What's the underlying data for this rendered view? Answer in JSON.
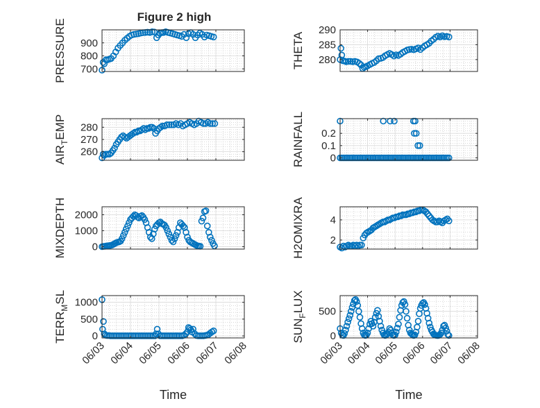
{
  "figure": {
    "title": "Figure 2 high",
    "marker_color": "#0072BD",
    "x_tick_labels": [
      "06/03",
      "06/04",
      "06/05",
      "06/06",
      "06/07",
      "06/08"
    ],
    "x_label": "Time"
  },
  "chart_data": [
    {
      "type": "scatter",
      "ylabel": "PRESSURE",
      "xlim": [
        3.0,
        8.0
      ],
      "ylim": [
        680,
        1000
      ],
      "yticks": [
        700,
        800,
        900
      ],
      "x_tick_labels_shown": false,
      "xlabel": "",
      "grid": true,
      "x": [
        3.0,
        3.04,
        3.08,
        3.14,
        3.2,
        3.26,
        3.32,
        3.4,
        3.48,
        3.56,
        3.64,
        3.72,
        3.8,
        3.88,
        3.96,
        4.04,
        4.12,
        4.2,
        4.28,
        4.36,
        4.44,
        4.52,
        4.6,
        4.68,
        4.76,
        4.84,
        4.92,
        4.98,
        5.04,
        5.1,
        5.16,
        5.24,
        5.32,
        5.4,
        5.48,
        5.56,
        5.64,
        5.72,
        5.8,
        5.88,
        5.96,
        6.04,
        6.12,
        6.2,
        6.28,
        6.36,
        6.44,
        6.52,
        6.6,
        6.68,
        6.76,
        6.84,
        6.92
      ],
      "y": [
        690,
        750,
        740,
        770,
        770,
        775,
        780,
        800,
        830,
        860,
        880,
        900,
        920,
        935,
        950,
        960,
        965,
        968,
        970,
        975,
        978,
        980,
        982,
        980,
        985,
        983,
        940,
        960,
        975,
        978,
        980,
        985,
        980,
        975,
        970,
        965,
        960,
        955,
        950,
        965,
        940,
        970,
        978,
        965,
        940,
        960,
        975,
        965,
        945,
        960,
        955,
        950,
        945
      ]
    },
    {
      "type": "scatter",
      "ylabel": "THETA",
      "xlim": [
        3.0,
        8.0
      ],
      "ylim": [
        276,
        290
      ],
      "yticks": [
        280,
        285,
        290
      ],
      "x_tick_labels_shown": false,
      "xlabel": "",
      "grid": true,
      "x": [
        3.0,
        3.03,
        3.06,
        3.1,
        3.16,
        3.22,
        3.3,
        3.38,
        3.46,
        3.54,
        3.62,
        3.7,
        3.76,
        3.82,
        3.88,
        3.94,
        4.0,
        4.08,
        4.16,
        4.24,
        4.32,
        4.4,
        4.48,
        4.56,
        4.64,
        4.72,
        4.8,
        4.88,
        4.96,
        5.04,
        5.12,
        5.2,
        5.28,
        5.36,
        5.44,
        5.52,
        5.6,
        5.68,
        5.76,
        5.84,
        5.92,
        6.0,
        6.08,
        6.16,
        6.24,
        6.32,
        6.4,
        6.48,
        6.56,
        6.64,
        6.72,
        6.8,
        6.88,
        6.96
      ],
      "y": [
        280.0,
        283.8,
        281.5,
        279.6,
        279.5,
        279.3,
        279.4,
        279.4,
        279.3,
        279.4,
        279.2,
        278.7,
        278.2,
        277.0,
        277.4,
        277.6,
        277.9,
        278.3,
        278.7,
        279.0,
        279.6,
        280.3,
        280.4,
        280.7,
        281.3,
        281.7,
        282.1,
        281.7,
        281.2,
        281.6,
        281.4,
        281.8,
        282.4,
        282.8,
        283.2,
        283.4,
        283.5,
        283.3,
        283.6,
        283.9,
        283.4,
        284.0,
        284.6,
        285.0,
        285.5,
        286.3,
        286.8,
        287.5,
        287.9,
        287.6,
        288.0,
        287.7,
        287.8,
        287.6
      ]
    },
    {
      "type": "scatter",
      "ylabel": "AIR_TEMP",
      "xlim": [
        3.0,
        8.0
      ],
      "ylim": [
        253,
        287
      ],
      "yticks": [
        260,
        270,
        280
      ],
      "x_tick_labels_shown": false,
      "xlabel": "",
      "grid": true,
      "x": [
        3.0,
        3.04,
        3.08,
        3.14,
        3.2,
        3.26,
        3.32,
        3.38,
        3.44,
        3.5,
        3.56,
        3.62,
        3.68,
        3.74,
        3.8,
        3.86,
        3.92,
        3.98,
        4.04,
        4.1,
        4.16,
        4.22,
        4.28,
        4.34,
        4.4,
        4.46,
        4.52,
        4.58,
        4.64,
        4.7,
        4.76,
        4.82,
        4.88,
        4.94,
        5.0,
        5.06,
        5.12,
        5.2,
        5.28,
        5.36,
        5.44,
        5.52,
        5.6,
        5.68,
        5.76,
        5.84,
        5.92,
        6.0,
        6.08,
        6.16,
        6.24,
        6.32,
        6.4,
        6.48,
        6.56,
        6.64,
        6.72,
        6.8,
        6.88,
        6.96
      ],
      "y": [
        255,
        258,
        257,
        258,
        258,
        258,
        259,
        261,
        263,
        266,
        268,
        270,
        272,
        273,
        272,
        271,
        272,
        273,
        274,
        275,
        276,
        276,
        277,
        277,
        278,
        279,
        278,
        279,
        279,
        280,
        280,
        279,
        275,
        277,
        279,
        280,
        281,
        281,
        282,
        282,
        282,
        282,
        283,
        282,
        283,
        281,
        282,
        283,
        284,
        283,
        282,
        283,
        285,
        284,
        283,
        283,
        284,
        283,
        283,
        283
      ]
    },
    {
      "type": "scatter",
      "ylabel": "RAINFALL",
      "xlim": [
        3.0,
        8.0
      ],
      "ylim": [
        -0.02,
        0.32
      ],
      "yticks": [
        0,
        0.1,
        0.2
      ],
      "x_tick_labels_shown": false,
      "xlabel": "",
      "grid": true,
      "x": [
        3.0,
        3.0,
        3.06,
        3.12,
        3.18,
        3.24,
        3.3,
        3.36,
        3.42,
        3.48,
        3.54,
        3.6,
        3.66,
        3.72,
        3.78,
        3.84,
        3.9,
        3.96,
        4.02,
        4.08,
        4.14,
        4.2,
        4.26,
        4.32,
        4.38,
        4.44,
        4.5,
        4.56,
        4.62,
        4.68,
        4.74,
        4.8,
        4.86,
        4.92,
        4.98,
        5.04,
        5.1,
        5.16,
        5.22,
        5.28,
        5.34,
        5.4,
        5.46,
        5.52,
        5.58,
        5.64,
        5.7,
        5.76,
        5.82,
        5.88,
        5.94,
        6.0,
        6.06,
        6.12,
        6.18,
        6.24,
        6.3,
        6.36,
        6.42,
        6.48,
        6.54,
        6.6,
        6.66,
        6.72,
        6.78,
        6.84,
        6.9,
        6.96,
        4.57,
        4.82,
        4.97,
        5.67,
        5.73,
        5.7,
        5.77,
        5.83,
        5.9
      ],
      "y": [
        0.3,
        0,
        0,
        0,
        0,
        0,
        0,
        0,
        0,
        0,
        0,
        0,
        0,
        0,
        0,
        0,
        0,
        0,
        0,
        0,
        0,
        0,
        0,
        0,
        0,
        0,
        0,
        0,
        0,
        0,
        0,
        0,
        0,
        0,
        0,
        0,
        0,
        0,
        0,
        0,
        0,
        0,
        0,
        0,
        0,
        0,
        0,
        0,
        0,
        0,
        0,
        0,
        0,
        0,
        0,
        0,
        0,
        0,
        0,
        0,
        0,
        0,
        0,
        0,
        0,
        0,
        0,
        0,
        0.3,
        0.3,
        0.3,
        0.3,
        0.3,
        0.2,
        0.2,
        0.1,
        0.1
      ]
    },
    {
      "type": "scatter",
      "ylabel": "MIXDEPTH",
      "xlim": [
        3.0,
        8.0
      ],
      "ylim": [
        -150,
        2500
      ],
      "yticks": [
        0,
        1000,
        2000
      ],
      "x_tick_labels_shown": false,
      "xlabel": "",
      "grid": true,
      "x": [
        3.0,
        3.05,
        3.1,
        3.15,
        3.2,
        3.25,
        3.3,
        3.35,
        3.4,
        3.45,
        3.5,
        3.55,
        3.6,
        3.65,
        3.7,
        3.75,
        3.8,
        3.85,
        3.9,
        3.95,
        4.0,
        4.05,
        4.1,
        4.15,
        4.2,
        4.25,
        4.3,
        4.35,
        4.4,
        4.45,
        4.5,
        4.55,
        4.6,
        4.65,
        4.7,
        4.75,
        4.8,
        4.85,
        4.9,
        4.95,
        5.0,
        5.05,
        5.1,
        5.15,
        5.2,
        5.25,
        5.3,
        5.35,
        5.4,
        5.45,
        5.5,
        5.55,
        5.6,
        5.65,
        5.7,
        5.75,
        5.8,
        5.85,
        5.9,
        5.95,
        6.0,
        6.05,
        6.1,
        6.15,
        6.2,
        6.25,
        6.3,
        6.35,
        6.4,
        6.45,
        6.5,
        6.55,
        6.6,
        6.65,
        6.7,
        6.75,
        6.8,
        6.85,
        6.9,
        6.95
      ],
      "y": [
        0,
        20,
        30,
        50,
        60,
        70,
        80,
        100,
        150,
        200,
        250,
        280,
        300,
        350,
        500,
        700,
        900,
        1100,
        1300,
        1500,
        1700,
        1800,
        1900,
        2000,
        1950,
        1850,
        1800,
        1900,
        1950,
        1850,
        1700,
        1500,
        1200,
        900,
        600,
        500,
        800,
        1100,
        1300,
        1400,
        1500,
        1550,
        1450,
        1400,
        1350,
        1200,
        1000,
        800,
        600,
        400,
        300,
        500,
        700,
        900,
        1200,
        1500,
        1400,
        1300,
        1200,
        900,
        600,
        400,
        300,
        250,
        200,
        150,
        100,
        50,
        40,
        30,
        1600,
        1800,
        2200,
        2250,
        1300,
        900,
        600,
        400,
        200,
        50
      ]
    },
    {
      "type": "scatter",
      "ylabel": "H2OMIXRA",
      "xlim": [
        3.0,
        8.0
      ],
      "ylim": [
        1.1,
        5.3
      ],
      "yticks": [
        2,
        4
      ],
      "x_tick_labels_shown": false,
      "xlabel": "",
      "grid": true,
      "x": [
        3.0,
        3.06,
        3.12,
        3.18,
        3.24,
        3.3,
        3.36,
        3.42,
        3.48,
        3.54,
        3.6,
        3.66,
        3.72,
        3.78,
        3.84,
        3.9,
        3.96,
        4.02,
        4.08,
        4.14,
        4.2,
        4.26,
        4.32,
        4.38,
        4.44,
        4.5,
        4.56,
        4.62,
        4.68,
        4.74,
        4.8,
        4.86,
        4.92,
        4.98,
        5.04,
        5.1,
        5.16,
        5.22,
        5.28,
        5.34,
        5.4,
        5.46,
        5.52,
        5.58,
        5.64,
        5.7,
        5.76,
        5.82,
        5.88,
        5.94,
        6.0,
        6.06,
        6.12,
        6.18,
        6.24,
        6.3,
        6.36,
        6.42,
        6.48,
        6.54,
        6.6,
        6.66,
        6.72,
        6.78,
        6.84,
        6.9,
        6.96
      ],
      "y": [
        1.3,
        1.2,
        1.4,
        1.3,
        1.4,
        1.5,
        1.4,
        1.4,
        1.5,
        1.4,
        1.5,
        1.4,
        1.5,
        1.5,
        2.2,
        2.5,
        2.7,
        2.8,
        2.9,
        3.0,
        3.2,
        3.3,
        3.4,
        3.5,
        3.6,
        3.7,
        3.8,
        3.8,
        3.9,
        4.0,
        4.0,
        4.1,
        4.2,
        4.2,
        4.3,
        4.3,
        4.4,
        4.4,
        4.5,
        4.5,
        4.5,
        4.6,
        4.6,
        4.7,
        4.7,
        4.8,
        4.8,
        4.9,
        4.9,
        5.0,
        5.0,
        4.9,
        4.8,
        4.6,
        4.4,
        4.2,
        4.0,
        3.9,
        3.8,
        3.8,
        3.9,
        3.8,
        3.7,
        3.9,
        4.0,
        4.1,
        3.9
      ]
    },
    {
      "type": "scatter",
      "ylabel": "TERR_MSL",
      "xlim": [
        3.0,
        8.0
      ],
      "ylim": [
        -60,
        1200
      ],
      "yticks": [
        0,
        500,
        1000
      ],
      "x_tick_labels_shown": true,
      "xlabel": "Time",
      "grid": true,
      "x": [
        3.0,
        3.02,
        3.05,
        3.08,
        3.12,
        3.18,
        3.24,
        3.3,
        3.36,
        3.42,
        3.48,
        3.54,
        3.6,
        3.66,
        3.72,
        3.78,
        3.84,
        3.9,
        3.96,
        4.02,
        4.08,
        4.14,
        4.2,
        4.26,
        4.32,
        4.38,
        4.44,
        4.5,
        4.56,
        4.62,
        4.68,
        4.74,
        4.8,
        4.86,
        4.9,
        4.94,
        4.98,
        5.04,
        5.1,
        5.16,
        5.22,
        5.28,
        5.34,
        5.4,
        5.46,
        5.52,
        5.58,
        5.64,
        5.7,
        5.76,
        5.82,
        5.88,
        5.94,
        6.0,
        6.04,
        6.08,
        6.12,
        6.16,
        6.2,
        6.26,
        6.32,
        6.38,
        6.44,
        6.5,
        6.56,
        6.62,
        6.68,
        6.74,
        6.8,
        6.86,
        6.92
      ],
      "y": [
        1080,
        200,
        430,
        60,
        20,
        10,
        10,
        5,
        5,
        5,
        5,
        5,
        5,
        5,
        5,
        5,
        5,
        5,
        5,
        5,
        5,
        5,
        5,
        5,
        5,
        5,
        5,
        5,
        5,
        5,
        5,
        5,
        5,
        5,
        60,
        200,
        60,
        5,
        5,
        5,
        5,
        5,
        5,
        5,
        5,
        5,
        5,
        5,
        5,
        5,
        5,
        20,
        60,
        120,
        250,
        220,
        180,
        120,
        200,
        60,
        10,
        5,
        5,
        5,
        5,
        10,
        20,
        40,
        80,
        120,
        150
      ]
    },
    {
      "type": "scatter",
      "ylabel": "SUN_FLUX",
      "xlim": [
        3.0,
        8.0
      ],
      "ylim": [
        -40,
        820
      ],
      "yticks": [
        0,
        500
      ],
      "x_tick_labels_shown": true,
      "xlabel": "Time",
      "grid": true,
      "x": [
        3.0,
        3.04,
        3.08,
        3.12,
        3.16,
        3.2,
        3.24,
        3.28,
        3.32,
        3.36,
        3.4,
        3.44,
        3.48,
        3.52,
        3.56,
        3.6,
        3.64,
        3.68,
        3.72,
        3.76,
        3.8,
        3.84,
        3.88,
        3.92,
        3.96,
        4.0,
        4.04,
        4.08,
        4.12,
        4.16,
        4.2,
        4.24,
        4.28,
        4.32,
        4.36,
        4.4,
        4.44,
        4.48,
        4.52,
        4.56,
        4.6,
        4.64,
        4.68,
        4.72,
        4.76,
        4.8,
        4.84,
        4.88,
        4.92,
        4.96,
        5.0,
        5.04,
        5.08,
        5.12,
        5.16,
        5.2,
        5.24,
        5.28,
        5.32,
        5.36,
        5.4,
        5.44,
        5.48,
        5.52,
        5.56,
        5.6,
        5.64,
        5.68,
        5.72,
        5.76,
        5.8,
        5.84,
        5.88,
        5.92,
        5.96,
        6.0,
        6.04,
        6.08,
        6.12,
        6.16,
        6.2,
        6.24,
        6.28,
        6.32,
        6.36,
        6.4,
        6.44,
        6.48,
        6.52,
        6.56,
        6.6,
        6.64,
        6.68,
        6.72,
        6.76,
        6.8,
        6.84,
        6.88,
        6.92,
        6.96
      ],
      "y": [
        150,
        60,
        20,
        10,
        50,
        120,
        200,
        280,
        350,
        420,
        500,
        580,
        650,
        720,
        740,
        700,
        620,
        500,
        380,
        250,
        150,
        60,
        20,
        10,
        20,
        60,
        150,
        240,
        300,
        250,
        200,
        280,
        380,
        460,
        520,
        400,
        300,
        200,
        120,
        60,
        20,
        10,
        20,
        40,
        80,
        150,
        120,
        60,
        20,
        10,
        20,
        80,
        160,
        240,
        380,
        520,
        620,
        680,
        700,
        640,
        500,
        360,
        220,
        120,
        60,
        40,
        20,
        10,
        20,
        80,
        180,
        300,
        450,
        560,
        620,
        660,
        680,
        640,
        560,
        460,
        360,
        260,
        180,
        120,
        80,
        40,
        20,
        15,
        10,
        8,
        15,
        30,
        60,
        120,
        200,
        220,
        160,
        100,
        30,
        10
      ]
    }
  ]
}
